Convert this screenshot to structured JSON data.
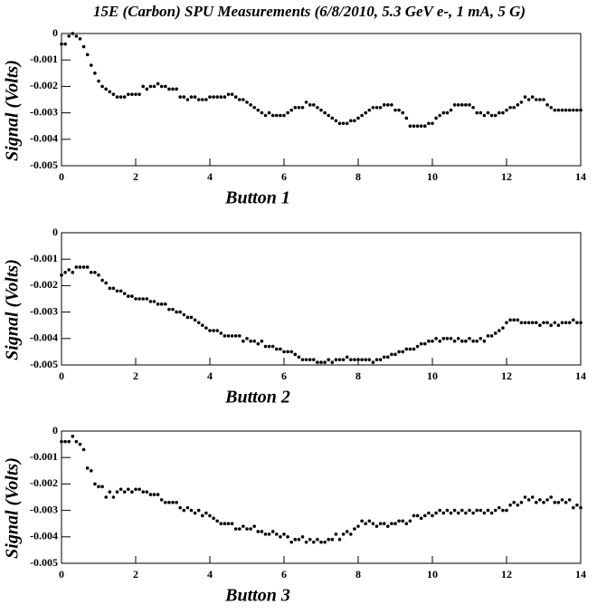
{
  "chart_data": [
    {
      "type": "scatter",
      "title": "15E (Carbon) SPU Measurements (6/8/2010, 5.3 GeV e-, 1 mA, 5 G)",
      "xlabel": "Button 1",
      "ylabel": "Signal (Volts)",
      "color": "#000000",
      "xlim": [
        0,
        14
      ],
      "ylim": [
        -0.005,
        0
      ],
      "xticks": [
        0,
        2,
        4,
        6,
        8,
        10,
        12,
        14
      ],
      "yticks": [
        0,
        -0.001,
        -0.002,
        -0.003,
        -0.004,
        -0.005
      ],
      "x": [
        0,
        0.1,
        0.2,
        0.3,
        0.4,
        0.5,
        0.6,
        0.7,
        0.8,
        0.9,
        1,
        1.1,
        1.2,
        1.3,
        1.4,
        1.5,
        1.6,
        1.7,
        1.8,
        1.9,
        2,
        2.1,
        2.2,
        2.3,
        2.4,
        2.5,
        2.6,
        2.7,
        2.8,
        2.9,
        3,
        3.1,
        3.2,
        3.3,
        3.4,
        3.5,
        3.6,
        3.7,
        3.8,
        3.9,
        4,
        4.1,
        4.2,
        4.3,
        4.4,
        4.5,
        4.6,
        4.7,
        4.8,
        4.9,
        5,
        5.1,
        5.2,
        5.3,
        5.4,
        5.5,
        5.6,
        5.7,
        5.8,
        5.9,
        6,
        6.1,
        6.2,
        6.3,
        6.4,
        6.5,
        6.6,
        6.7,
        6.8,
        6.9,
        7,
        7.1,
        7.2,
        7.3,
        7.4,
        7.5,
        7.6,
        7.7,
        7.8,
        7.9,
        8,
        8.1,
        8.2,
        8.3,
        8.4,
        8.5,
        8.6,
        8.7,
        8.8,
        8.9,
        9,
        9.1,
        9.2,
        9.3,
        9.4,
        9.5,
        9.6,
        9.7,
        9.8,
        9.9,
        10,
        10.1,
        10.2,
        10.3,
        10.4,
        10.5,
        10.6,
        10.7,
        10.8,
        10.9,
        11,
        11.1,
        11.2,
        11.3,
        11.4,
        11.5,
        11.6,
        11.7,
        11.8,
        11.9,
        12,
        12.1,
        12.2,
        12.3,
        12.4,
        12.5,
        12.6,
        12.7,
        12.8,
        12.9,
        13,
        13.1,
        13.2,
        13.3,
        13.4,
        13.5,
        13.6,
        13.7,
        13.8,
        13.9,
        14
      ],
      "values": [
        -0.0004,
        -0.0004,
        -0.0001,
        0,
        -0.0001,
        -0.0002,
        -0.0005,
        -0.0008,
        -0.0012,
        -0.0015,
        -0.0018,
        -0.002,
        -0.0021,
        -0.0022,
        -0.0023,
        -0.0024,
        -0.0024,
        -0.0024,
        -0.0023,
        -0.0023,
        -0.0023,
        -0.0023,
        -0.002,
        -0.0021,
        -0.002,
        -0.002,
        -0.0019,
        -0.002,
        -0.002,
        -0.0021,
        -0.0021,
        -0.0021,
        -0.0024,
        -0.0024,
        -0.0025,
        -0.0024,
        -0.0024,
        -0.0025,
        -0.0025,
        -0.0025,
        -0.0024,
        -0.0024,
        -0.0024,
        -0.0024,
        -0.0024,
        -0.0023,
        -0.0023,
        -0.0024,
        -0.0025,
        -0.0025,
        -0.0026,
        -0.0027,
        -0.0028,
        -0.0029,
        -0.003,
        -0.0031,
        -0.003,
        -0.0031,
        -0.0031,
        -0.0031,
        -0.0031,
        -0.003,
        -0.0029,
        -0.0028,
        -0.0028,
        -0.0028,
        -0.0026,
        -0.0027,
        -0.0027,
        -0.0028,
        -0.0029,
        -0.003,
        -0.0031,
        -0.0032,
        -0.0033,
        -0.0034,
        -0.0034,
        -0.0034,
        -0.0033,
        -0.0033,
        -0.0032,
        -0.0031,
        -0.003,
        -0.0029,
        -0.0028,
        -0.0028,
        -0.0028,
        -0.0027,
        -0.0027,
        -0.0027,
        -0.0029,
        -0.0029,
        -0.003,
        -0.0032,
        -0.0035,
        -0.0035,
        -0.0035,
        -0.0035,
        -0.0035,
        -0.0034,
        -0.0034,
        -0.0032,
        -0.0031,
        -0.003,
        -0.003,
        -0.0029,
        -0.0027,
        -0.0027,
        -0.0027,
        -0.0027,
        -0.0027,
        -0.0028,
        -0.003,
        -0.003,
        -0.0031,
        -0.003,
        -0.0031,
        -0.0031,
        -0.003,
        -0.003,
        -0.0029,
        -0.0028,
        -0.0028,
        -0.0027,
        -0.0026,
        -0.0024,
        -0.0025,
        -0.0024,
        -0.0025,
        -0.0025,
        -0.0025,
        -0.0027,
        -0.0028,
        -0.0029,
        -0.0029,
        -0.0029,
        -0.0029,
        -0.0029,
        -0.0029,
        -0.0029,
        -0.0029
      ]
    },
    {
      "type": "scatter",
      "xlabel": "Button 2",
      "ylabel": "Signal (Volts)",
      "color": "#000000",
      "xlim": [
        0,
        14
      ],
      "ylim": [
        -0.005,
        0
      ],
      "xticks": [
        0,
        2,
        4,
        6,
        8,
        10,
        12,
        14
      ],
      "yticks": [
        0,
        -0.001,
        -0.002,
        -0.003,
        -0.004,
        -0.005
      ],
      "x": [
        0,
        0.1,
        0.2,
        0.3,
        0.4,
        0.5,
        0.6,
        0.7,
        0.8,
        0.9,
        1,
        1.1,
        1.2,
        1.3,
        1.4,
        1.5,
        1.6,
        1.7,
        1.8,
        1.9,
        2,
        2.1,
        2.2,
        2.3,
        2.4,
        2.5,
        2.6,
        2.7,
        2.8,
        2.9,
        3,
        3.1,
        3.2,
        3.3,
        3.4,
        3.5,
        3.6,
        3.7,
        3.8,
        3.9,
        4,
        4.1,
        4.2,
        4.3,
        4.4,
        4.5,
        4.6,
        4.7,
        4.8,
        4.9,
        5,
        5.1,
        5.2,
        5.3,
        5.4,
        5.5,
        5.6,
        5.7,
        5.8,
        5.9,
        6,
        6.1,
        6.2,
        6.3,
        6.4,
        6.5,
        6.6,
        6.7,
        6.8,
        6.9,
        7,
        7.1,
        7.2,
        7.3,
        7.4,
        7.5,
        7.6,
        7.7,
        7.8,
        7.9,
        8,
        8.1,
        8.2,
        8.3,
        8.4,
        8.5,
        8.6,
        8.7,
        8.8,
        8.9,
        9,
        9.1,
        9.2,
        9.3,
        9.4,
        9.5,
        9.6,
        9.7,
        9.8,
        9.9,
        10,
        10.1,
        10.2,
        10.3,
        10.4,
        10.5,
        10.6,
        10.7,
        10.8,
        10.9,
        11,
        11.1,
        11.2,
        11.3,
        11.4,
        11.5,
        11.6,
        11.7,
        11.8,
        11.9,
        12,
        12.1,
        12.2,
        12.3,
        12.4,
        12.5,
        12.6,
        12.7,
        12.8,
        12.9,
        13,
        13.1,
        13.2,
        13.3,
        13.4,
        13.5,
        13.6,
        13.7,
        13.8,
        13.9,
        14
      ],
      "values": [
        -0.0016,
        -0.0015,
        -0.0014,
        -0.0015,
        -0.0013,
        -0.0013,
        -0.0013,
        -0.0013,
        -0.0015,
        -0.0015,
        -0.0016,
        -0.0018,
        -0.0019,
        -0.0021,
        -0.0021,
        -0.0022,
        -0.0022,
        -0.0023,
        -0.0024,
        -0.0024,
        -0.0025,
        -0.0025,
        -0.0025,
        -0.0025,
        -0.0026,
        -0.0026,
        -0.0027,
        -0.0027,
        -0.0027,
        -0.0029,
        -0.0029,
        -0.003,
        -0.003,
        -0.0031,
        -0.0032,
        -0.0032,
        -0.0033,
        -0.0034,
        -0.0035,
        -0.0036,
        -0.0037,
        -0.0037,
        -0.0037,
        -0.0038,
        -0.0039,
        -0.0039,
        -0.0039,
        -0.0039,
        -0.0039,
        -0.0041,
        -0.004,
        -0.0041,
        -0.0041,
        -0.0042,
        -0.0041,
        -0.0043,
        -0.0043,
        -0.0043,
        -0.0044,
        -0.0044,
        -0.0045,
        -0.0045,
        -0.0045,
        -0.0046,
        -0.0047,
        -0.0048,
        -0.0048,
        -0.0048,
        -0.0048,
        -0.0049,
        -0.0049,
        -0.0049,
        -0.0048,
        -0.0049,
        -0.0048,
        -0.0048,
        -0.0048,
        -0.0047,
        -0.0048,
        -0.0048,
        -0.0048,
        -0.0048,
        -0.0048,
        -0.0048,
        -0.0049,
        -0.0048,
        -0.0048,
        -0.0047,
        -0.0047,
        -0.0046,
        -0.0046,
        -0.0045,
        -0.0045,
        -0.0044,
        -0.0044,
        -0.0044,
        -0.0043,
        -0.0042,
        -0.0042,
        -0.0041,
        -0.0041,
        -0.004,
        -0.0041,
        -0.004,
        -0.004,
        -0.004,
        -0.0041,
        -0.004,
        -0.0041,
        -0.0041,
        -0.004,
        -0.0041,
        -0.0041,
        -0.004,
        -0.0041,
        -0.0039,
        -0.0039,
        -0.0038,
        -0.0037,
        -0.0036,
        -0.0034,
        -0.0033,
        -0.0033,
        -0.0033,
        -0.0034,
        -0.0034,
        -0.0034,
        -0.0034,
        -0.0034,
        -0.0035,
        -0.0034,
        -0.0034,
        -0.0035,
        -0.0034,
        -0.0035,
        -0.0034,
        -0.0034,
        -0.0034,
        -0.0033,
        -0.0034,
        -0.0034
      ]
    },
    {
      "type": "scatter",
      "xlabel": "Button 3",
      "ylabel": "Signal (Volts)",
      "color": "#000000",
      "xlim": [
        0,
        14
      ],
      "ylim": [
        -0.005,
        0
      ],
      "xticks": [
        0,
        2,
        4,
        6,
        8,
        10,
        12,
        14
      ],
      "yticks": [
        0,
        -0.001,
        -0.002,
        -0.003,
        -0.004,
        -0.005
      ],
      "x": [
        0,
        0.1,
        0.2,
        0.3,
        0.4,
        0.5,
        0.6,
        0.7,
        0.8,
        0.9,
        1,
        1.1,
        1.2,
        1.3,
        1.4,
        1.5,
        1.6,
        1.7,
        1.8,
        1.9,
        2,
        2.1,
        2.2,
        2.3,
        2.4,
        2.5,
        2.6,
        2.7,
        2.8,
        2.9,
        3,
        3.1,
        3.2,
        3.3,
        3.4,
        3.5,
        3.6,
        3.7,
        3.8,
        3.9,
        4,
        4.1,
        4.2,
        4.3,
        4.4,
        4.5,
        4.6,
        4.7,
        4.8,
        4.9,
        5,
        5.1,
        5.2,
        5.3,
        5.4,
        5.5,
        5.6,
        5.7,
        5.8,
        5.9,
        6,
        6.1,
        6.2,
        6.3,
        6.4,
        6.5,
        6.6,
        6.7,
        6.8,
        6.9,
        7,
        7.1,
        7.2,
        7.3,
        7.4,
        7.5,
        7.6,
        7.7,
        7.8,
        7.9,
        8,
        8.1,
        8.2,
        8.3,
        8.4,
        8.5,
        8.6,
        8.7,
        8.8,
        8.9,
        9,
        9.1,
        9.2,
        9.3,
        9.4,
        9.5,
        9.6,
        9.7,
        9.8,
        9.9,
        10,
        10.1,
        10.2,
        10.3,
        10.4,
        10.5,
        10.6,
        10.7,
        10.8,
        10.9,
        11,
        11.1,
        11.2,
        11.3,
        11.4,
        11.5,
        11.6,
        11.7,
        11.8,
        11.9,
        12,
        12.1,
        12.2,
        12.3,
        12.4,
        12.5,
        12.6,
        12.7,
        12.8,
        12.9,
        13,
        13.1,
        13.2,
        13.3,
        13.4,
        13.5,
        13.6,
        13.7,
        13.8,
        13.9,
        14
      ],
      "values": [
        -0.0004,
        -0.0004,
        -0.0004,
        -0.0002,
        -0.0004,
        -0.0005,
        -0.0007,
        -0.0014,
        -0.0015,
        -0.002,
        -0.0021,
        -0.0021,
        -0.0025,
        -0.0023,
        -0.0025,
        -0.0023,
        -0.0022,
        -0.0023,
        -0.0022,
        -0.0023,
        -0.0022,
        -0.0022,
        -0.0023,
        -0.0023,
        -0.0024,
        -0.0024,
        -0.0024,
        -0.0026,
        -0.0027,
        -0.0027,
        -0.0027,
        -0.0027,
        -0.0029,
        -0.003,
        -0.0029,
        -0.003,
        -0.0031,
        -0.003,
        -0.0032,
        -0.0031,
        -0.0032,
        -0.0033,
        -0.0034,
        -0.0035,
        -0.0035,
        -0.0035,
        -0.0035,
        -0.0037,
        -0.0037,
        -0.0036,
        -0.0037,
        -0.0037,
        -0.0036,
        -0.0038,
        -0.0038,
        -0.0039,
        -0.0039,
        -0.0038,
        -0.0039,
        -0.004,
        -0.0039,
        -0.004,
        -0.0042,
        -0.0041,
        -0.0041,
        -0.004,
        -0.0042,
        -0.0041,
        -0.0042,
        -0.0041,
        -0.0042,
        -0.0042,
        -0.0041,
        -0.0041,
        -0.0039,
        -0.0041,
        -0.0039,
        -0.0038,
        -0.0039,
        -0.0037,
        -0.0036,
        -0.0034,
        -0.0035,
        -0.0034,
        -0.0035,
        -0.0036,
        -0.0035,
        -0.0035,
        -0.0036,
        -0.0035,
        -0.0035,
        -0.0034,
        -0.0034,
        -0.0035,
        -0.0034,
        -0.0032,
        -0.0032,
        -0.0033,
        -0.0032,
        -0.0031,
        -0.0032,
        -0.0031,
        -0.003,
        -0.0031,
        -0.003,
        -0.0031,
        -0.003,
        -0.0031,
        -0.003,
        -0.0031,
        -0.003,
        -0.0031,
        -0.003,
        -0.003,
        -0.0031,
        -0.003,
        -0.0031,
        -0.003,
        -0.0029,
        -0.003,
        -0.003,
        -0.0028,
        -0.0027,
        -0.0028,
        -0.0027,
        -0.0025,
        -0.0026,
        -0.0025,
        -0.0027,
        -0.0026,
        -0.0027,
        -0.0026,
        -0.0025,
        -0.0027,
        -0.0027,
        -0.0026,
        -0.0027,
        -0.0026,
        -0.0029,
        -0.0028,
        -0.0029
      ]
    }
  ]
}
